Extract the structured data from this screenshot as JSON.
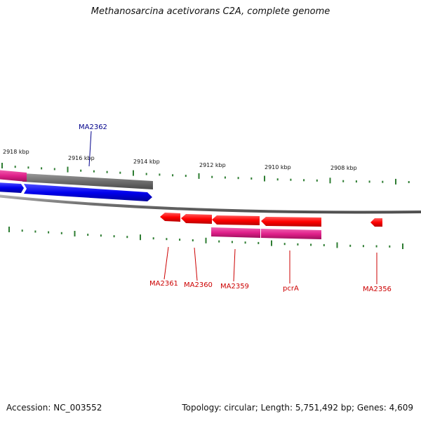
{
  "title": "Methanosarcina acetivorans C2A, complete genome",
  "footer": {
    "accession": "Accession: NC_003552",
    "summary": "Topology: circular; Length: 5,751,492 bp; Genes: 4,609"
  },
  "colors": {
    "forward_label": "#00008b",
    "reverse_label": "#cc0000",
    "tick": "#2e7d32",
    "backbone": "#808080",
    "cds_red": "#ff0000",
    "cds_blue": "#0000ee",
    "gene_grey": "#6e6e6e",
    "gene_pink": "#e0208a"
  },
  "scale": {
    "ticks": [
      {
        "label": "2918 kbp"
      },
      {
        "label": "2916 kbp"
      },
      {
        "label": "2914 kbp"
      },
      {
        "label": "2912 kbp"
      },
      {
        "label": "2910 kbp"
      },
      {
        "label": "2908 kbp"
      }
    ]
  },
  "genes": {
    "forward": [
      {
        "label": "MA2362"
      }
    ],
    "reverse": [
      {
        "label": "MA2361"
      },
      {
        "label": "MA2360"
      },
      {
        "label": "MA2359"
      },
      {
        "label": "pcrA"
      },
      {
        "label": "MA2356"
      }
    ]
  }
}
